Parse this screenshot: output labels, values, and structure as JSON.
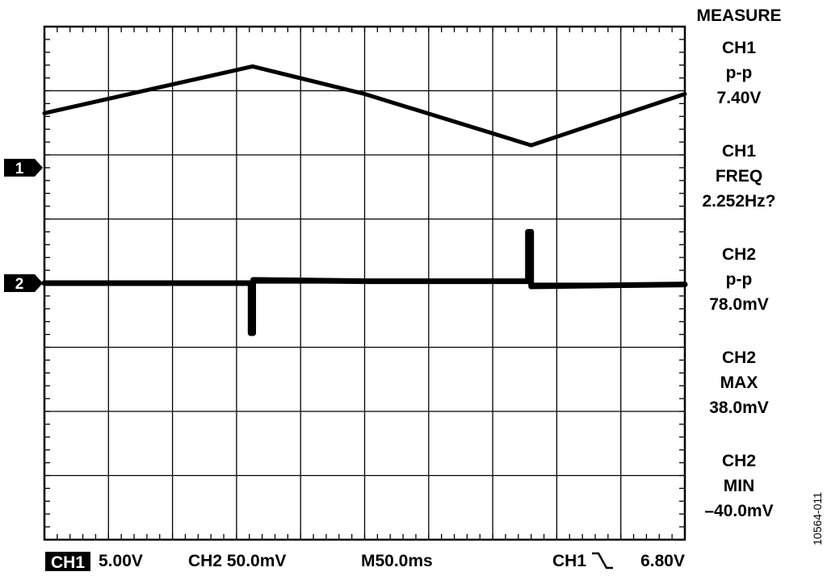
{
  "chart_data": {
    "type": "line",
    "grid": true,
    "x": {
      "divisions": 10,
      "time_per_div": "M50.0ms"
    },
    "y": {
      "divisions": 8
    },
    "series": [
      {
        "channel": "CH1",
        "marker": "1",
        "scale": "5.00V",
        "waveform": "triangle",
        "points_div": [
          [
            0,
            1.35
          ],
          [
            3.25,
            0.62
          ],
          [
            5.0,
            1.05
          ],
          [
            7.6,
            1.85
          ],
          [
            10,
            1.05
          ]
        ]
      },
      {
        "channel": "CH2",
        "marker": "2",
        "scale": "50.0mV",
        "waveform": "flat with spikes",
        "points_div": [
          [
            0,
            4.0
          ],
          [
            3.22,
            4.0
          ],
          [
            3.22,
            4.78
          ],
          [
            3.26,
            4.78
          ],
          [
            3.26,
            3.95
          ],
          [
            5.0,
            3.97
          ],
          [
            7.55,
            3.97
          ],
          [
            7.55,
            3.2
          ],
          [
            7.6,
            3.2
          ],
          [
            7.6,
            4.05
          ],
          [
            10,
            4.02
          ]
        ]
      }
    ],
    "trigger": {
      "channel": "CH1",
      "slope": "falling",
      "level": "6.80V"
    },
    "colors": {
      "trace": "#000000",
      "grid": "#000000",
      "background": "#ffffff"
    }
  },
  "measure": {
    "heading": "MEASURE",
    "items": [
      {
        "channel": "CH1",
        "label": "p-p",
        "value": "7.40V"
      },
      {
        "channel": "CH1",
        "label": "FREQ",
        "value": "2.252Hz?"
      },
      {
        "channel": "CH2",
        "label": "p-p",
        "value": "78.0mV"
      },
      {
        "channel": "CH2",
        "label": "MAX",
        "value": "38.0mV"
      },
      {
        "channel": "CH2",
        "label": "MIN",
        "value": "–40.0mV"
      }
    ]
  },
  "status": {
    "ch1_label": "CH1",
    "ch1_scale": "5.00V",
    "ch2_scale_text": "CH2 50.0mV",
    "timebase": "M50.0ms",
    "trigger_channel": "CH1",
    "trigger_level": "6.80V"
  },
  "figure_id": "10564-011"
}
